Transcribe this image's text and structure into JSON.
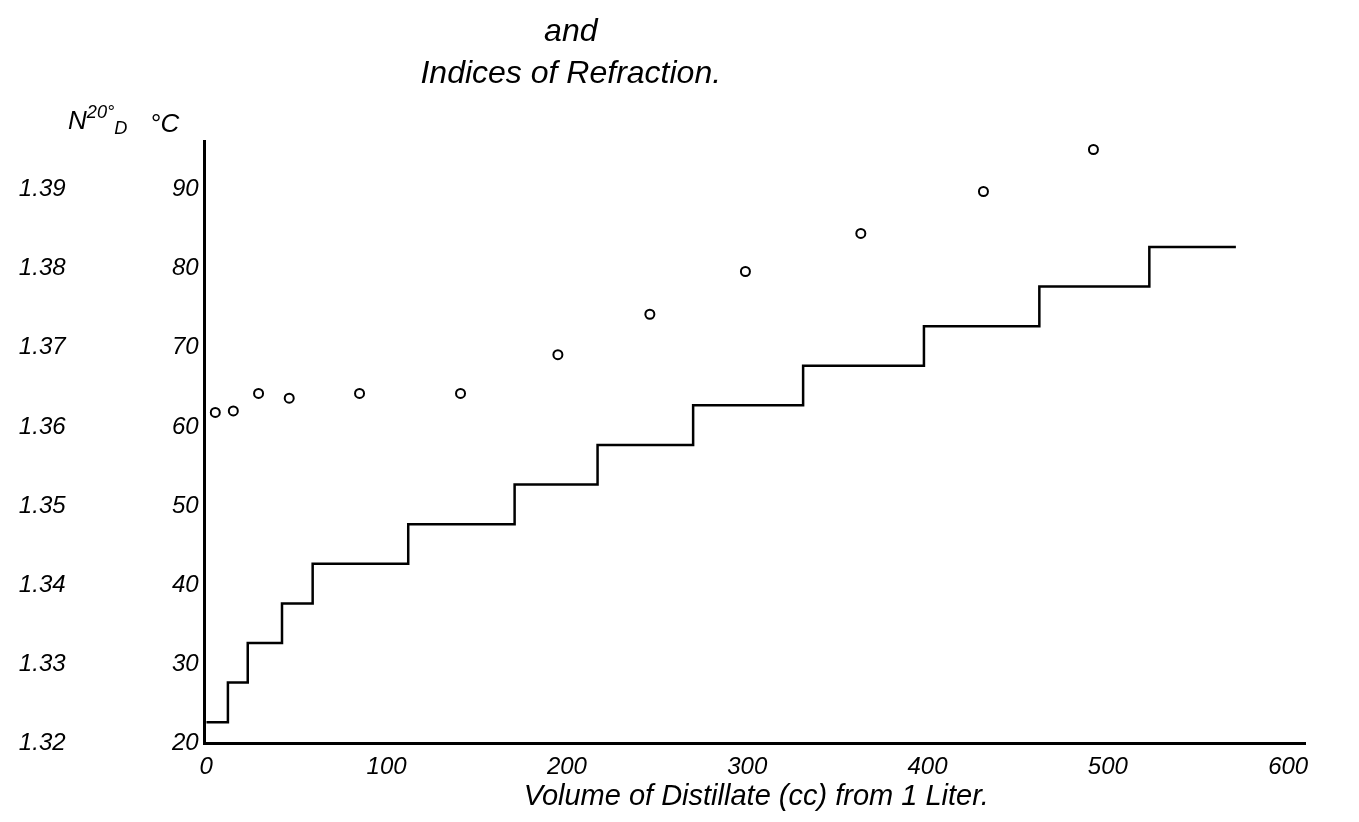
{
  "chart_data": {
    "type": "step",
    "title": "and\nIndices of Refraction.",
    "xlabel": "Volume of Distillate (cc) from 1 Liter.",
    "ylabel": "°C",
    "y2label": "N$^{20°}$$_{D}$",
    "series": [
      {
        "color": "#000000",
        "x": [
          0,
          12,
          23,
          42,
          59,
          112,
          171,
          217,
          270,
          331,
          398,
          462,
          523,
          571
        ],
        "values": [
          22.5,
          27.5,
          32.5,
          37.5,
          42.5,
          47.5,
          52.5,
          57.5,
          62.5,
          67.5,
          72.5,
          77.5,
          82.5,
          82.5
        ]
      },
      {
        "type": "scatter",
        "axis": "y2",
        "color": "#000000",
        "marker": "circle",
        "x": [
          5,
          15,
          29,
          46,
          85,
          141,
          195,
          246,
          299,
          363,
          431,
          492
        ],
        "values": [
          1.3616,
          1.3618,
          1.364,
          1.3634,
          1.364,
          1.364,
          1.3689,
          1.374,
          1.3794,
          1.3842,
          1.3895,
          1.3948
        ]
      }
    ],
    "xlim": [
      0,
      610
    ],
    "xticks": [
      0,
      100,
      200,
      300,
      400,
      500,
      600
    ],
    "ylim": [
      20,
      96
    ],
    "yticks": [
      20,
      30,
      40,
      50,
      60,
      70,
      80,
      90
    ],
    "y2lim": [
      1.32,
      1.396
    ],
    "y2ticks": [
      1.32,
      1.33,
      1.34,
      1.35,
      1.36,
      1.37,
      1.38,
      1.39
    ]
  }
}
